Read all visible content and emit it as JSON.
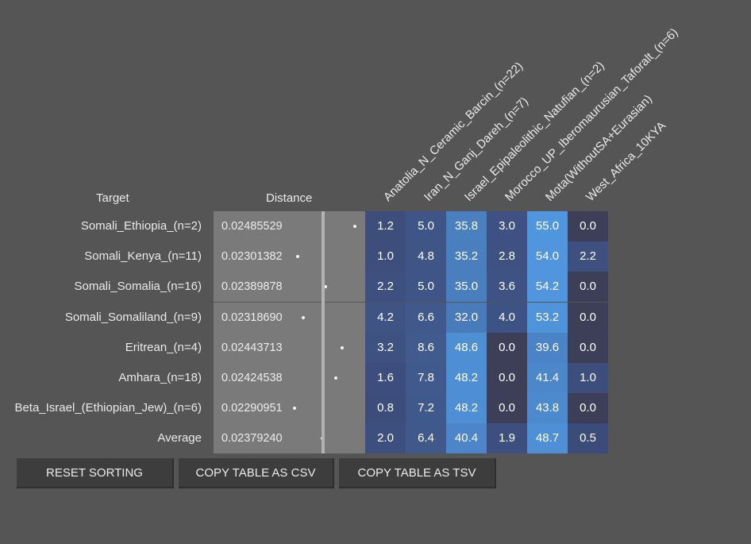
{
  "headers": {
    "target": "Target",
    "distance": "Distance"
  },
  "columns": [
    "Anatolia_N_Ceramic_Barcin_(n=22)",
    "Iran_N_Ganj_Dareh_(n=7)",
    "Israel_Epipaleolithic_Natufian_(n=2)",
    "Morocco_UP_Iberomaurusian_Taforalt_(n=6)",
    "Mota(WithoutSA+Eurasian)",
    "West_Africa_10KYA"
  ],
  "rows": [
    {
      "target": "Somali_Ethiopia_(n=2)",
      "distance": "0.02485529",
      "values": [
        "1.2",
        "5.0",
        "35.8",
        "3.0",
        "55.0",
        "0.0"
      ]
    },
    {
      "target": "Somali_Kenya_(n=11)",
      "distance": "0.02301382",
      "values": [
        "1.0",
        "4.8",
        "35.2",
        "2.8",
        "54.0",
        "2.2"
      ]
    },
    {
      "target": "Somali_Somalia_(n=16)",
      "distance": "0.02389878",
      "values": [
        "2.2",
        "5.0",
        "35.0",
        "3.6",
        "54.2",
        "0.0"
      ]
    },
    {
      "target": "Somali_Somaliland_(n=9)",
      "distance": "0.02318690",
      "values": [
        "4.2",
        "6.6",
        "32.0",
        "4.0",
        "53.2",
        "0.0"
      ]
    },
    {
      "target": "Eritrean_(n=4)",
      "distance": "0.02443713",
      "values": [
        "3.2",
        "8.6",
        "48.6",
        "0.0",
        "39.6",
        "0.0"
      ]
    },
    {
      "target": "Amhara_(n=18)",
      "distance": "0.02424538",
      "values": [
        "1.6",
        "7.8",
        "48.2",
        "0.0",
        "41.4",
        "1.0"
      ]
    },
    {
      "target": "Beta_Israel_(Ethiopian_Jew)_(n=6)",
      "distance": "0.02290951",
      "values": [
        "0.8",
        "7.2",
        "48.2",
        "0.0",
        "43.8",
        "0.0"
      ]
    },
    {
      "target": "Average",
      "distance": "0.02379240",
      "values": [
        "2.0",
        "6.4",
        "40.4",
        "1.9",
        "48.7",
        "0.5"
      ]
    }
  ],
  "buttons": {
    "reset": "RESET SORTING",
    "csv": "COPY TABLE AS CSV",
    "tsv": "COPY TABLE AS TSV"
  }
}
